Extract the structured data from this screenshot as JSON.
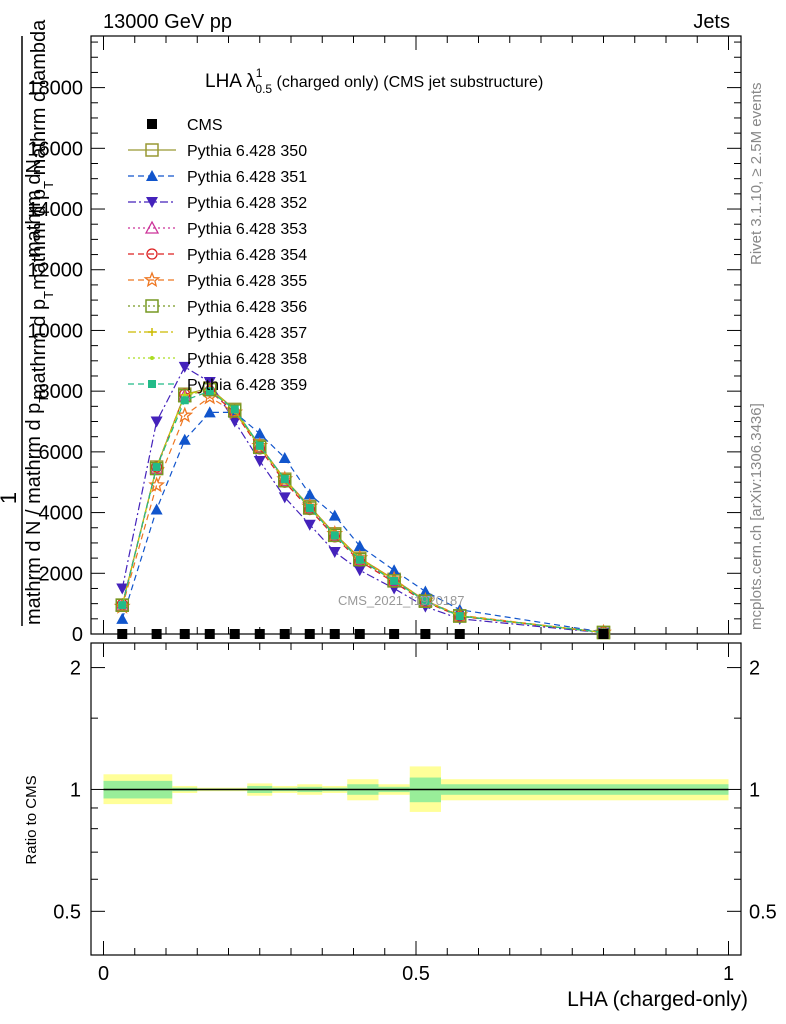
{
  "header": {
    "left": "13000 GeV pp",
    "right": "Jets",
    "plot_title_main": "LHA λ",
    "plot_title_sup": "1",
    "plot_title_sub": "0.5",
    "plot_title_rest": " (charged only) (CMS jet substructure)",
    "side_rivet": "Rivet 3.1.10, ≥ 2.5M events",
    "side_mcplots": "mcplots.cern.ch [arXiv:1306.3436]",
    "watermark": "CMS_2021_I1920187"
  },
  "ylabel_main": {
    "one": "1",
    "upper_a": "mathrm dN",
    "upper_b": "mathrm d p",
    "upper_b_sub": "T",
    "upper_b_rest": " mathrm d lambda",
    "lower_a": "mathrm d N / mathrm d p",
    "lower_a_sub": "T",
    "lower_b": "mathrm d p",
    "lower_b_sub": "T"
  },
  "ratio_axis": {
    "ylabel": "Ratio to CMS",
    "xlabel": "LHA (charged-only)",
    "yticks": [
      "0.5",
      "1",
      "2"
    ],
    "xticks": [
      "0",
      "0.5",
      "1"
    ]
  },
  "chart_data": {
    "type": "line",
    "x": [
      0.03,
      0.085,
      0.13,
      0.17,
      0.21,
      0.25,
      0.29,
      0.33,
      0.37,
      0.41,
      0.465,
      0.515,
      0.57,
      0.8
    ],
    "ylim": [
      0,
      19700
    ],
    "xlim": [
      -0.02,
      1.02
    ],
    "yticks": [
      "0",
      "2000",
      "4000",
      "6000",
      "8000",
      "10000",
      "12000",
      "14000",
      "16000",
      "18000"
    ],
    "legend_placement": "top-left",
    "series": [
      {
        "name": "CMS",
        "color": "#000000",
        "marker": "square-filled",
        "dash": "none",
        "values": [
          0,
          0,
          0,
          0,
          0,
          0,
          0,
          0,
          0,
          0,
          0,
          0,
          0,
          0
        ]
      },
      {
        "name": "Pythia 6.428 350",
        "color": "#999933",
        "marker": "square-open",
        "dash": "solid",
        "values": [
          950,
          5500,
          7900,
          8100,
          7400,
          6200,
          5100,
          4200,
          3300,
          2500,
          1800,
          1100,
          600,
          50
        ]
      },
      {
        "name": "Pythia 6.428 351",
        "color": "#1155cc",
        "marker": "triangle-up-filled",
        "dash": "dashed",
        "values": [
          500,
          4100,
          6400,
          7300,
          7300,
          6600,
          5800,
          4600,
          3900,
          2900,
          2100,
          1400,
          800,
          60
        ]
      },
      {
        "name": "Pythia 6.428 352",
        "color": "#4422bb",
        "marker": "triangle-down-filled",
        "dash": "dashdot",
        "values": [
          1500,
          7000,
          8800,
          8300,
          7000,
          5700,
          4500,
          3600,
          2700,
          2100,
          1500,
          900,
          500,
          40
        ]
      },
      {
        "name": "Pythia 6.428 353",
        "color": "#cc3399",
        "marker": "triangle-up-open",
        "dash": "dotted",
        "values": [
          950,
          5450,
          7850,
          8100,
          7350,
          6150,
          5050,
          4150,
          3250,
          2450,
          1750,
          1080,
          590,
          50
        ]
      },
      {
        "name": "Pythia 6.428 354",
        "color": "#dd2222",
        "marker": "circle-open",
        "dash": "dashed",
        "values": [
          980,
          5500,
          7900,
          8000,
          7300,
          6100,
          5000,
          4100,
          3200,
          2400,
          1700,
          1050,
          580,
          50
        ]
      },
      {
        "name": "Pythia 6.428 355",
        "color": "#ee7722",
        "marker": "star-open",
        "dash": "dashed",
        "values": [
          900,
          4900,
          7200,
          7800,
          7300,
          6200,
          5100,
          4200,
          3300,
          2500,
          1800,
          1100,
          620,
          50
        ]
      },
      {
        "name": "Pythia 6.428 356",
        "color": "#779922",
        "marker": "square-open",
        "dash": "dotted",
        "values": [
          950,
          5450,
          7850,
          8050,
          7350,
          6150,
          5050,
          4150,
          3250,
          2450,
          1750,
          1080,
          590,
          50
        ]
      },
      {
        "name": "Pythia 6.428 357",
        "color": "#ccbb00",
        "marker": "cross",
        "dash": "dashdot",
        "values": [
          960,
          5500,
          7880,
          8080,
          7380,
          6180,
          5080,
          4180,
          3280,
          2480,
          1780,
          1090,
          600,
          50
        ]
      },
      {
        "name": "Pythia 6.428 358",
        "color": "#aadd22",
        "marker": "dot",
        "dash": "dotted",
        "values": [
          940,
          5480,
          7860,
          8060,
          7360,
          6160,
          5060,
          4160,
          3260,
          2460,
          1760,
          1085,
          595,
          50
        ]
      },
      {
        "name": "Pythia 6.428 359",
        "color": "#22bb88",
        "marker": "square-filled-small",
        "dash": "dashed",
        "values": [
          950,
          5500,
          7700,
          8000,
          7400,
          6200,
          5100,
          4150,
          3250,
          2450,
          1750,
          1080,
          590,
          50
        ]
      }
    ],
    "ratio": {
      "ylim_log": [
        0.39,
        2.3
      ],
      "bands": [
        {
          "x0": 0.0,
          "x1": 0.11,
          "inner": [
            0.95,
            1.05
          ],
          "outer": [
            0.92,
            1.09
          ]
        },
        {
          "x0": 0.11,
          "x1": 0.15,
          "inner": [
            0.99,
            1.01
          ],
          "outer": [
            0.98,
            1.02
          ]
        },
        {
          "x0": 0.15,
          "x1": 0.23,
          "inner": [
            0.995,
            1.005
          ],
          "outer": [
            0.99,
            1.01
          ]
        },
        {
          "x0": 0.23,
          "x1": 0.27,
          "inner": [
            0.98,
            1.02
          ],
          "outer": [
            0.965,
            1.035
          ]
        },
        {
          "x0": 0.27,
          "x1": 0.31,
          "inner": [
            0.99,
            1.01
          ],
          "outer": [
            0.98,
            1.02
          ]
        },
        {
          "x0": 0.31,
          "x1": 0.35,
          "inner": [
            0.985,
            1.015
          ],
          "outer": [
            0.97,
            1.03
          ]
        },
        {
          "x0": 0.35,
          "x1": 0.39,
          "inner": [
            0.99,
            1.01
          ],
          "outer": [
            0.98,
            1.02
          ]
        },
        {
          "x0": 0.39,
          "x1": 0.44,
          "inner": [
            0.97,
            1.03
          ],
          "outer": [
            0.94,
            1.06
          ]
        },
        {
          "x0": 0.44,
          "x1": 0.49,
          "inner": [
            0.985,
            1.015
          ],
          "outer": [
            0.97,
            1.03
          ]
        },
        {
          "x0": 0.49,
          "x1": 0.54,
          "inner": [
            0.93,
            1.07
          ],
          "outer": [
            0.88,
            1.14
          ]
        },
        {
          "x0": 0.54,
          "x1": 1.0,
          "inner": [
            0.97,
            1.03
          ],
          "outer": [
            0.94,
            1.06
          ]
        }
      ]
    }
  }
}
